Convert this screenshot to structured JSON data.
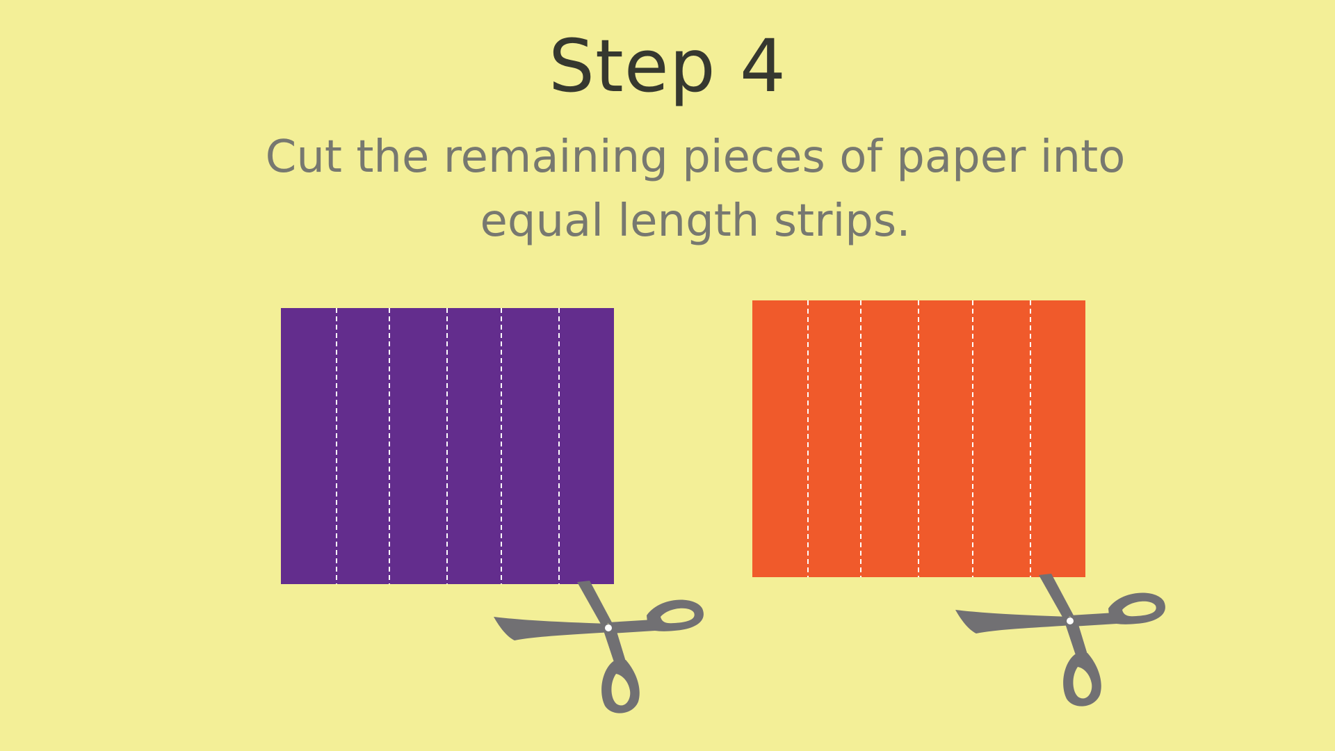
{
  "slide": {
    "title": "Step 4",
    "instruction": "Cut the remaining pieces of paper into equal length strips."
  },
  "colors": {
    "background": "#f3ef97",
    "title": "#36382f",
    "instruction": "#777870",
    "paper_purple": "#632d8d",
    "paper_orange": "#f05a2b",
    "cut_line": "#ffffff",
    "scissors": "#717073"
  },
  "papers": [
    {
      "color_name": "purple",
      "strip_count": 6,
      "icon": "dashed-cut-lines"
    },
    {
      "color_name": "orange",
      "strip_count": 6,
      "icon": "dashed-cut-lines"
    }
  ],
  "scissors_icon": "scissors-icon"
}
